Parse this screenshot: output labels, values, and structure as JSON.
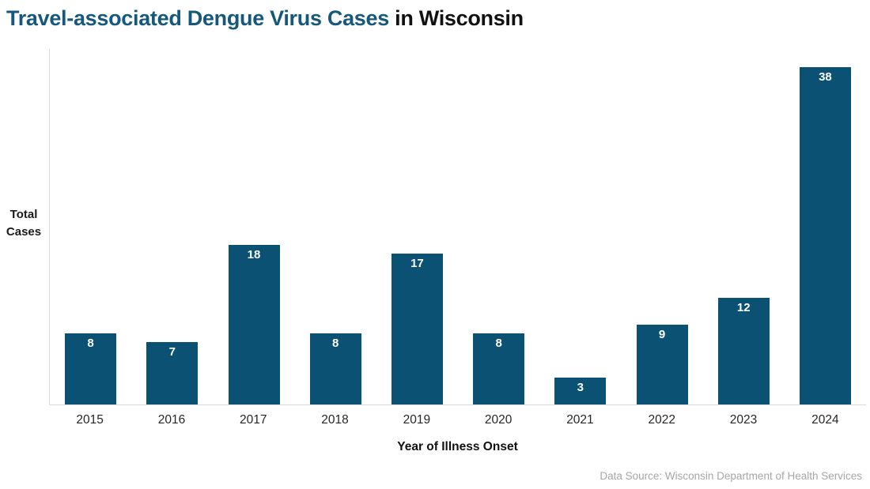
{
  "title": {
    "highlight": "Travel-associated Dengue Virus Cases",
    "rest": " in Wisconsin"
  },
  "y_axis": {
    "line1": "Total",
    "line2": "Cases"
  },
  "x_axis_title": "Year of Illness Onset",
  "data_source": "Data Source: Wisconsin Department of Health Services",
  "colors": {
    "bar": "#0B5174",
    "title_highlight": "#16587C",
    "axis": "#D9D9D9",
    "bar_label": "#FFFFFF",
    "source_text": "#A6A6A6"
  },
  "chart_data": {
    "type": "bar",
    "title": "Travel-associated Dengue Virus Cases in Wisconsin",
    "categories": [
      "2015",
      "2016",
      "2017",
      "2018",
      "2019",
      "2020",
      "2021",
      "2022",
      "2023",
      "2024"
    ],
    "values": [
      8,
      7,
      18,
      8,
      17,
      8,
      3,
      9,
      12,
      38
    ],
    "xlabel": "Year of Illness Onset",
    "ylabel": "Total Cases",
    "ylim": [
      0,
      40
    ],
    "grid": false,
    "legend": "none",
    "data_labels": "inside bar top, white bold"
  }
}
